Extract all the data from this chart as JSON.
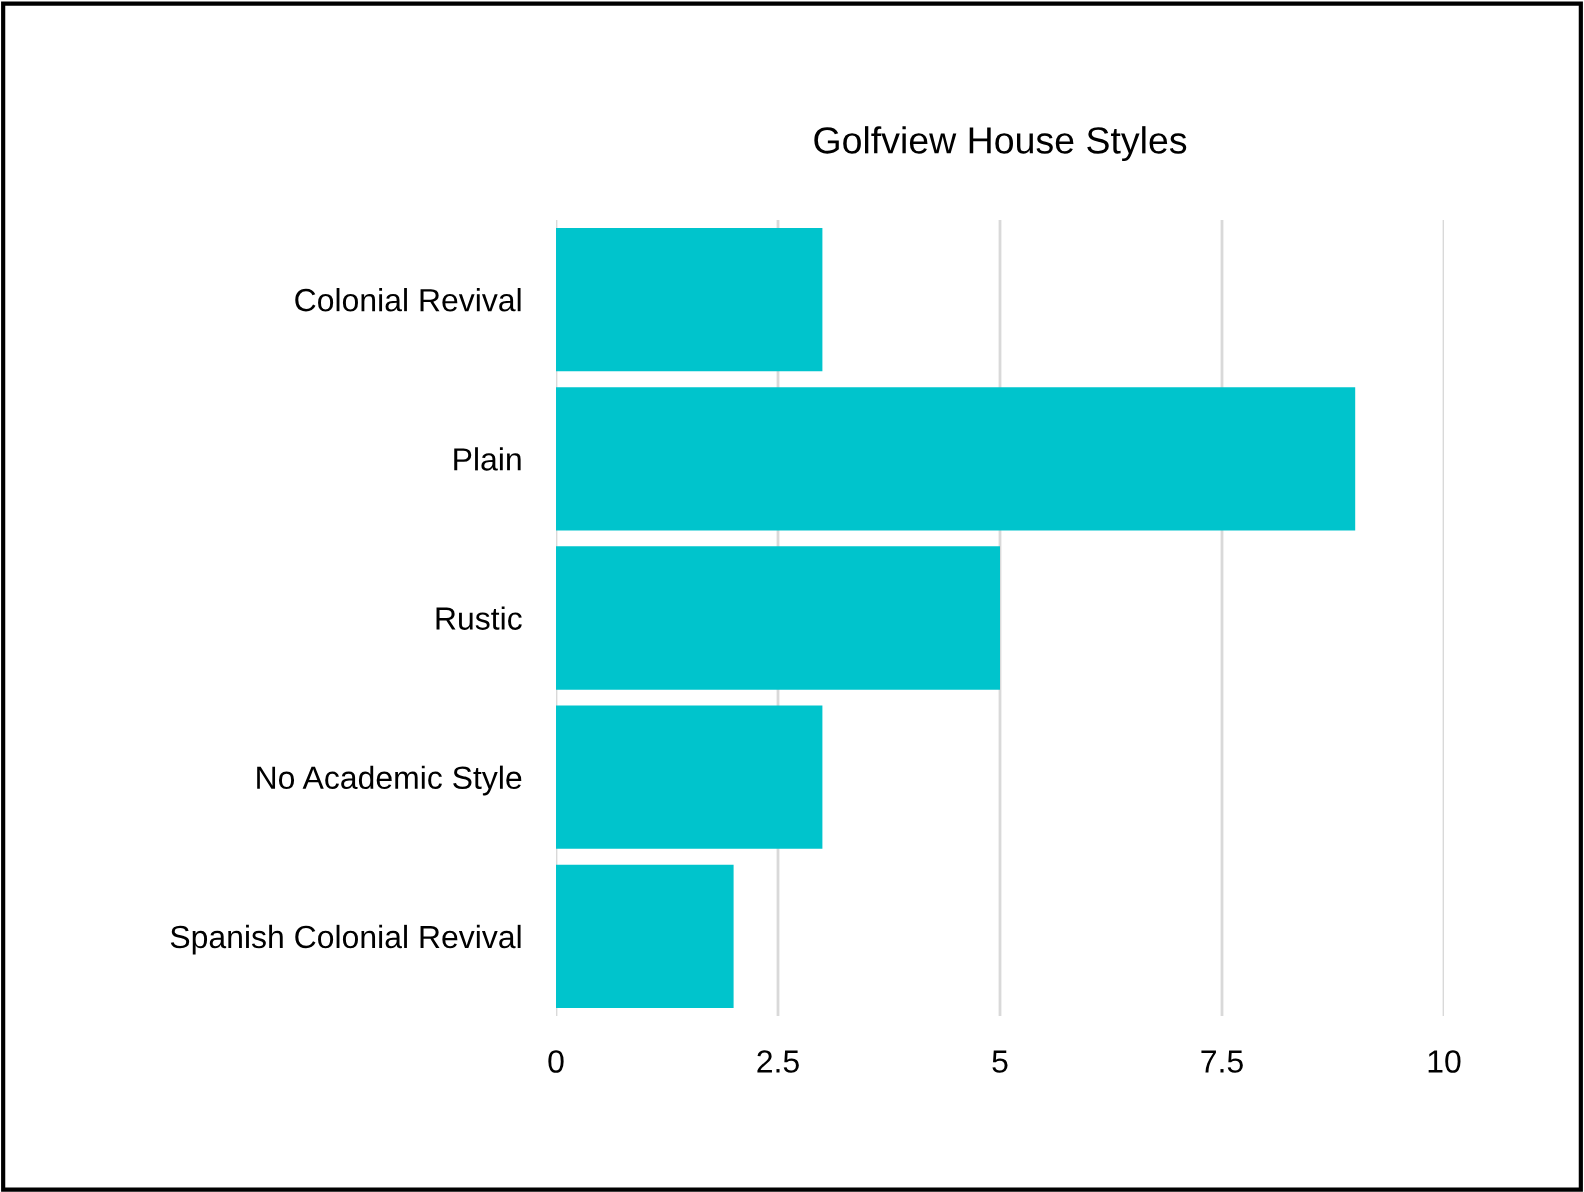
{
  "chart_data": {
    "type": "bar",
    "orientation": "horizontal",
    "title": "Golfview House Styles",
    "categories": [
      "Colonial Revival",
      "Plain",
      "Rustic",
      "No Academic Style",
      "Spanish Colonial Revival"
    ],
    "values": [
      3,
      9,
      5,
      3,
      2
    ],
    "color": "#00c4cc",
    "xlim": [
      0,
      10
    ],
    "xticks": [
      0,
      2.5,
      5,
      7.5,
      10
    ],
    "grid": "x",
    "legend": false
  }
}
